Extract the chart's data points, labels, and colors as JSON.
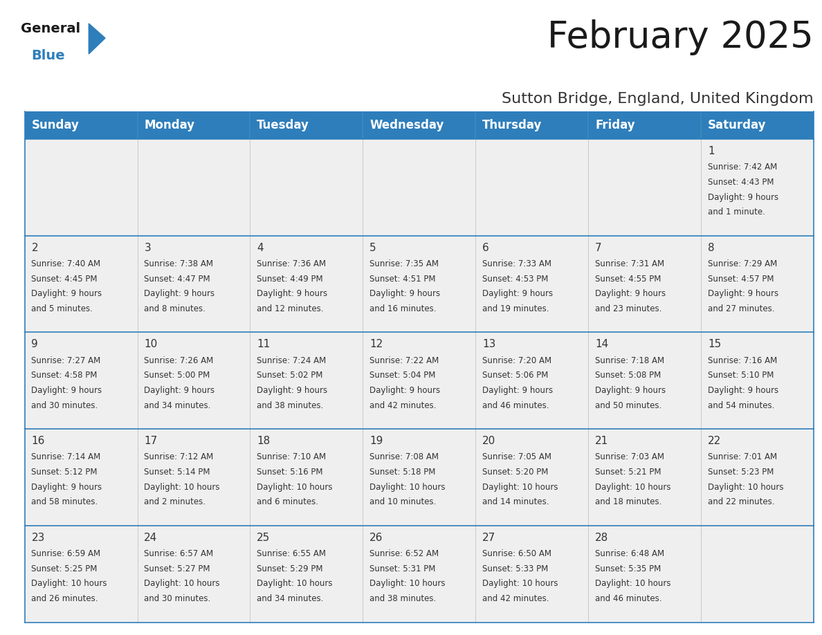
{
  "title": "February 2025",
  "subtitle": "Sutton Bridge, England, United Kingdom",
  "days_of_week": [
    "Sunday",
    "Monday",
    "Tuesday",
    "Wednesday",
    "Thursday",
    "Friday",
    "Saturday"
  ],
  "header_bg_color": "#2E7EBB",
  "header_text_color": "#FFFFFF",
  "cell_bg_color": "#EFEFEF",
  "cell_border_color": "#2E7EBB",
  "cell_line_color": "#CCCCCC",
  "day_number_color": "#333333",
  "cell_text_color": "#333333",
  "title_color": "#1a1a1a",
  "subtitle_color": "#333333",
  "logo_general_color": "#1a1a1a",
  "logo_blue_color": "#2E7EBB",
  "bg_color": "#FFFFFF",
  "weeks": [
    [
      {
        "day": null,
        "info": ""
      },
      {
        "day": null,
        "info": ""
      },
      {
        "day": null,
        "info": ""
      },
      {
        "day": null,
        "info": ""
      },
      {
        "day": null,
        "info": ""
      },
      {
        "day": null,
        "info": ""
      },
      {
        "day": 1,
        "info": "Sunrise: 7:42 AM\nSunset: 4:43 PM\nDaylight: 9 hours\nand 1 minute."
      }
    ],
    [
      {
        "day": 2,
        "info": "Sunrise: 7:40 AM\nSunset: 4:45 PM\nDaylight: 9 hours\nand 5 minutes."
      },
      {
        "day": 3,
        "info": "Sunrise: 7:38 AM\nSunset: 4:47 PM\nDaylight: 9 hours\nand 8 minutes."
      },
      {
        "day": 4,
        "info": "Sunrise: 7:36 AM\nSunset: 4:49 PM\nDaylight: 9 hours\nand 12 minutes."
      },
      {
        "day": 5,
        "info": "Sunrise: 7:35 AM\nSunset: 4:51 PM\nDaylight: 9 hours\nand 16 minutes."
      },
      {
        "day": 6,
        "info": "Sunrise: 7:33 AM\nSunset: 4:53 PM\nDaylight: 9 hours\nand 19 minutes."
      },
      {
        "day": 7,
        "info": "Sunrise: 7:31 AM\nSunset: 4:55 PM\nDaylight: 9 hours\nand 23 minutes."
      },
      {
        "day": 8,
        "info": "Sunrise: 7:29 AM\nSunset: 4:57 PM\nDaylight: 9 hours\nand 27 minutes."
      }
    ],
    [
      {
        "day": 9,
        "info": "Sunrise: 7:27 AM\nSunset: 4:58 PM\nDaylight: 9 hours\nand 30 minutes."
      },
      {
        "day": 10,
        "info": "Sunrise: 7:26 AM\nSunset: 5:00 PM\nDaylight: 9 hours\nand 34 minutes."
      },
      {
        "day": 11,
        "info": "Sunrise: 7:24 AM\nSunset: 5:02 PM\nDaylight: 9 hours\nand 38 minutes."
      },
      {
        "day": 12,
        "info": "Sunrise: 7:22 AM\nSunset: 5:04 PM\nDaylight: 9 hours\nand 42 minutes."
      },
      {
        "day": 13,
        "info": "Sunrise: 7:20 AM\nSunset: 5:06 PM\nDaylight: 9 hours\nand 46 minutes."
      },
      {
        "day": 14,
        "info": "Sunrise: 7:18 AM\nSunset: 5:08 PM\nDaylight: 9 hours\nand 50 minutes."
      },
      {
        "day": 15,
        "info": "Sunrise: 7:16 AM\nSunset: 5:10 PM\nDaylight: 9 hours\nand 54 minutes."
      }
    ],
    [
      {
        "day": 16,
        "info": "Sunrise: 7:14 AM\nSunset: 5:12 PM\nDaylight: 9 hours\nand 58 minutes."
      },
      {
        "day": 17,
        "info": "Sunrise: 7:12 AM\nSunset: 5:14 PM\nDaylight: 10 hours\nand 2 minutes."
      },
      {
        "day": 18,
        "info": "Sunrise: 7:10 AM\nSunset: 5:16 PM\nDaylight: 10 hours\nand 6 minutes."
      },
      {
        "day": 19,
        "info": "Sunrise: 7:08 AM\nSunset: 5:18 PM\nDaylight: 10 hours\nand 10 minutes."
      },
      {
        "day": 20,
        "info": "Sunrise: 7:05 AM\nSunset: 5:20 PM\nDaylight: 10 hours\nand 14 minutes."
      },
      {
        "day": 21,
        "info": "Sunrise: 7:03 AM\nSunset: 5:21 PM\nDaylight: 10 hours\nand 18 minutes."
      },
      {
        "day": 22,
        "info": "Sunrise: 7:01 AM\nSunset: 5:23 PM\nDaylight: 10 hours\nand 22 minutes."
      }
    ],
    [
      {
        "day": 23,
        "info": "Sunrise: 6:59 AM\nSunset: 5:25 PM\nDaylight: 10 hours\nand 26 minutes."
      },
      {
        "day": 24,
        "info": "Sunrise: 6:57 AM\nSunset: 5:27 PM\nDaylight: 10 hours\nand 30 minutes."
      },
      {
        "day": 25,
        "info": "Sunrise: 6:55 AM\nSunset: 5:29 PM\nDaylight: 10 hours\nand 34 minutes."
      },
      {
        "day": 26,
        "info": "Sunrise: 6:52 AM\nSunset: 5:31 PM\nDaylight: 10 hours\nand 38 minutes."
      },
      {
        "day": 27,
        "info": "Sunrise: 6:50 AM\nSunset: 5:33 PM\nDaylight: 10 hours\nand 42 minutes."
      },
      {
        "day": 28,
        "info": "Sunrise: 6:48 AM\nSunset: 5:35 PM\nDaylight: 10 hours\nand 46 minutes."
      },
      {
        "day": null,
        "info": ""
      }
    ]
  ],
  "title_fontsize": 38,
  "subtitle_fontsize": 16,
  "header_fontsize": 12,
  "day_num_fontsize": 11,
  "cell_text_fontsize": 8.5
}
